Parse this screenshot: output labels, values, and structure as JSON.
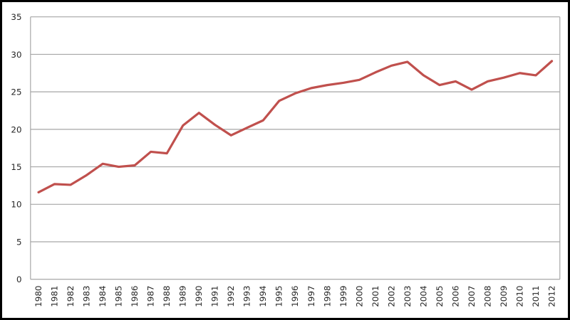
{
  "chart_data": {
    "type": "line",
    "title": "",
    "xlabel": "",
    "ylabel": "",
    "categories": [
      "1980",
      "1981",
      "1982",
      "1983",
      "1984",
      "1985",
      "1986",
      "1987",
      "1988",
      "1989",
      "1990",
      "1991",
      "1992",
      "1993",
      "1994",
      "1995",
      "1996",
      "1997",
      "1998",
      "1999",
      "2000",
      "2001",
      "2002",
      "2003",
      "2004",
      "2005",
      "2006",
      "2007",
      "2008",
      "2009",
      "2010",
      "2011",
      "2012"
    ],
    "values": [
      11.6,
      12.7,
      12.6,
      13.9,
      15.4,
      15.0,
      15.2,
      17.0,
      16.8,
      20.5,
      22.2,
      20.6,
      19.2,
      20.2,
      21.2,
      23.8,
      24.8,
      25.5,
      25.9,
      26.2,
      26.6,
      27.6,
      28.5,
      29.0,
      27.2,
      25.9,
      26.4,
      25.3,
      26.4,
      26.9,
      27.5,
      27.2,
      29.1
    ],
    "ylim": [
      0,
      35
    ],
    "yticks": [
      0,
      5,
      10,
      15,
      20,
      25,
      30,
      35
    ],
    "ytick_labels": [
      "0",
      "5",
      "10",
      "15",
      "20",
      "25",
      "30",
      "35"
    ],
    "x_label_rotation_degrees": -90,
    "grid": "horizontal",
    "legend_position": "none",
    "colors": {
      "line": "#C0504D",
      "gridline": "#A6A6A6",
      "plot_border": "#A6A6A6",
      "tick_label": "#262626",
      "background": "#FFFFFF",
      "frame_border": "#000000"
    }
  }
}
